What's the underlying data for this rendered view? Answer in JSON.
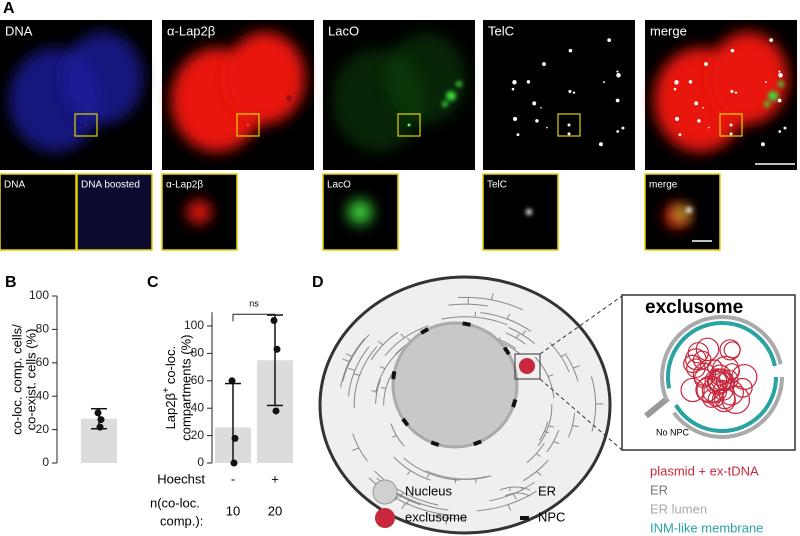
{
  "panel_a": {
    "label": "A",
    "images": [
      "DNA",
      "α-Lap2β",
      "LacO",
      "TelC",
      "merge"
    ],
    "insets": [
      "DNA",
      "DNA boosted",
      "α-Lap2β",
      "LacO",
      "TelC",
      "merge"
    ]
  },
  "chart_data": [
    {
      "type": "bar",
      "label": "B",
      "ylabel": [
        "co-loc. comp. cells/",
        "co-exist. cells (%)"
      ],
      "values": [
        26.5
      ],
      "errors": [
        6
      ],
      "points": [
        [
          30,
          26,
          21.5
        ]
      ],
      "color": "#dcdcdc",
      "ylim": [
        0,
        100
      ],
      "yticks": [
        0,
        20,
        40,
        60,
        80,
        100
      ]
    },
    {
      "type": "bar",
      "label": "C",
      "ylabel": {
        "main": "Lap2β",
        "sup": "+",
        "rest": "co-loc.",
        "line2": "compartments (%)"
      },
      "category_title": "Hoechst",
      "categories": [
        "-",
        "+"
      ],
      "values": [
        26,
        75
      ],
      "errors": [
        32,
        33
      ],
      "points": [
        [
          60,
          18,
          0
        ],
        [
          104,
          83,
          38
        ]
      ],
      "color": "#dcdcdc",
      "annotation": "ns",
      "n_title": [
        "n(co-loc.",
        "comp.):"
      ],
      "n": [
        10,
        20
      ],
      "ylim": [
        0,
        110
      ],
      "yticks": [
        0,
        20,
        40,
        60,
        80,
        100
      ]
    }
  ],
  "panel_d": {
    "label": "D",
    "zoom_title": "exclusome",
    "zoom_note": "No NPC",
    "legend": [
      "Nucleus",
      "exclusome",
      "ER",
      "NPC"
    ],
    "key": [
      {
        "text": "plasmid + ex-tDNA",
        "color": "#c8283c"
      },
      {
        "text": "ER",
        "color": "#777777"
      },
      {
        "text": "ER lumen",
        "color": "#aaaaaa"
      },
      {
        "text": "INM-like membrane",
        "color": "#2aa3a3"
      }
    ]
  }
}
